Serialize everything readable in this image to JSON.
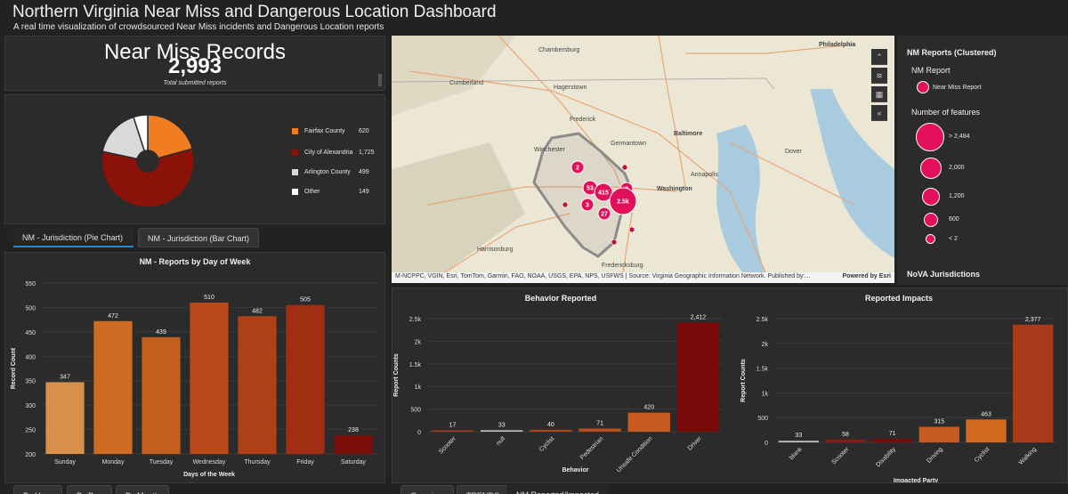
{
  "header": {
    "title": "Northern Virginia Near Miss and Dangerous Location Dashboard",
    "subtitle": "A real time visualization of crowdsourced Near Miss incidents and Dangerous Location reports"
  },
  "kpi": {
    "title": "Near Miss Records",
    "value": "2,993",
    "caption": "Total submitted reports"
  },
  "jurisdiction_tabs": [
    {
      "label": "NM - Jurisdiction (Pie Chart)",
      "active": true
    },
    {
      "label": "NM - Jurisdiction (Bar Chart)",
      "active": false
    }
  ],
  "bottom_left_tabs": [
    {
      "label": "By Hour"
    },
    {
      "label": "By Day"
    },
    {
      "label": "By Month"
    }
  ],
  "bottom_right_tabs": [
    {
      "label": "Overview"
    },
    {
      "label": "TRENDS"
    },
    {
      "label": "NM Reported/Impacted"
    }
  ],
  "map": {
    "attribution": "M-NCPPC, VGIN, Esri, TomTom, Garmin, FAO, NOAA, USGS, EPA, NPS, USFWS | Source: Virginia Geographic Information Network. Published by:...",
    "powered_by": "Powered by Esri",
    "places": [
      "Philadelphia",
      "Chambersburg",
      "Hagerstown",
      "Cumberland",
      "Frederick",
      "Baltimore",
      "Germantown",
      "Winchester",
      "Annapolis",
      "Dover",
      "Washington",
      "Harrisonburg",
      "Fredericksburg"
    ],
    "clusters": [
      "2",
      "53",
      "415",
      "2",
      "3",
      "27",
      "2.5k"
    ],
    "controls": [
      "expand-icon",
      "layers-icon",
      "qr-icon",
      "collapse-icon"
    ]
  },
  "map_legend": {
    "title": "NM Reports (Clustered)",
    "layer_name": "NM Report",
    "symbol_label": "Near Miss Report",
    "size_title": "Number of features",
    "sizes": [
      "> 2,484",
      "2,000",
      "1,200",
      "600",
      "< 2"
    ],
    "footer": "NoVA Jurisdictions"
  },
  "colors": {
    "fairfax": "#f07d22",
    "alexandria": "#8b1208",
    "arlington": "#d9d9d9",
    "other": "#ffffff",
    "cluster": "#e2105a"
  },
  "chart_data": [
    {
      "type": "pie",
      "title": "",
      "categories": [
        "Fairfax County",
        "City of Alexandria",
        "Arlington County",
        "Other"
      ],
      "values": [
        620,
        1725,
        499,
        149
      ],
      "value_labels": [
        "620",
        "1,725",
        "499",
        "149"
      ],
      "colors": [
        "#f07d22",
        "#8b1208",
        "#d9d9d9",
        "#ffffff"
      ],
      "legend": "right"
    },
    {
      "type": "bar",
      "title": "NM - Reports by Day of Week",
      "xlabel": "Days of the Week",
      "ylabel": "Record Count",
      "categories": [
        "Sunday",
        "Monday",
        "Tuesday",
        "Wednesday",
        "Thursday",
        "Friday",
        "Saturday"
      ],
      "values": [
        347,
        472,
        439,
        510,
        482,
        505,
        238
      ],
      "colors": [
        "#d8904a",
        "#cf6b23",
        "#c25f1e",
        "#b9481a",
        "#b04018",
        "#a02e12",
        "#7a0e0b"
      ],
      "ylim": [
        200,
        550
      ],
      "yticks": [
        "200",
        "250",
        "300",
        "350",
        "400",
        "450",
        "500",
        "550"
      ]
    },
    {
      "type": "bar",
      "title": "Behavior Reported",
      "xlabel": "Behavior",
      "ylabel": "Report Counts",
      "categories": [
        "Scooter",
        "null",
        "Cyclist",
        "Pedestrian",
        "Unsafe Condition",
        "Driver"
      ],
      "values": [
        17,
        33,
        40,
        71,
        420,
        2412
      ],
      "value_labels": [
        "17",
        "33",
        "40",
        "71",
        "420",
        "2,412"
      ],
      "colors": [
        "#a93a1a",
        "#bdbdbd",
        "#b04418",
        "#b84d1c",
        "#c65a1f",
        "#7a0a0a"
      ],
      "ylim": [
        0,
        2500
      ],
      "yticks": [
        "0",
        "500",
        "1k",
        "1.5k",
        "2k",
        "2.5k"
      ]
    },
    {
      "type": "bar",
      "title": "Reported Impacts",
      "xlabel": "Impacted Party",
      "ylabel": "Report Counts",
      "categories": [
        "blank",
        "Scooter",
        "Disability",
        "Driving",
        "Cyclist",
        "Walking"
      ],
      "values": [
        33,
        58,
        71,
        315,
        463,
        2377
      ],
      "value_labels": [
        "33",
        "58",
        "71",
        "315",
        "463",
        "2,377"
      ],
      "colors": [
        "#bdbdbd",
        "#8c1a10",
        "#7a0a0a",
        "#c65a1f",
        "#d26a22",
        "#a93a1a"
      ],
      "ylim": [
        0,
        2500
      ],
      "yticks": [
        "0",
        "500",
        "1k",
        "1.5k",
        "2k",
        "2.5k"
      ]
    }
  ]
}
